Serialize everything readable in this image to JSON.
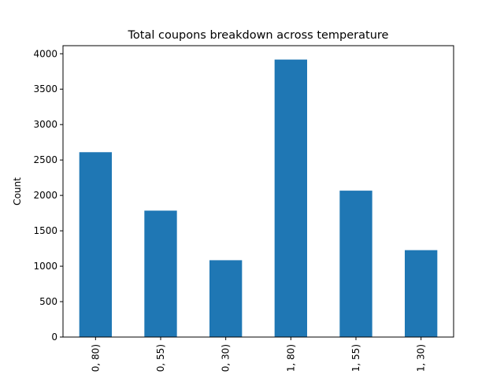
{
  "chart_data": {
    "type": "bar",
    "title": "Total coupons breakdown across temperature",
    "xlabel": "",
    "ylabel": "Count",
    "categories": [
      "0, 80)",
      "0, 55)",
      "0, 30)",
      "1, 80)",
      "1, 55)",
      "1, 30)"
    ],
    "values": [
      2610,
      1785,
      1085,
      3918,
      2067,
      1227
    ],
    "ylim": [
      0,
      4114
    ],
    "yticks": [
      0,
      500,
      1000,
      1500,
      2000,
      2500,
      3000,
      3500,
      4000
    ],
    "grid": false,
    "legend": "none",
    "bar_color": "#1f77b4"
  }
}
